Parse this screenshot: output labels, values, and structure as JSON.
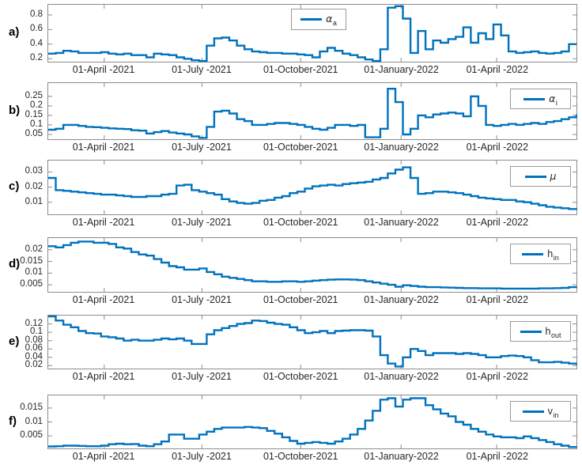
{
  "figure": {
    "background": "#ffffff",
    "line_color": "#0072BD",
    "axis_color": "#8c8c8c",
    "text_color": "#262626",
    "x_tick_labels": [
      "01-April -2021",
      "01-July -2021",
      "01-October-2021",
      "01-January-2022",
      "01-April -2022"
    ],
    "x_tick_positions": [
      0.106,
      0.291,
      0.478,
      0.668,
      0.849
    ]
  },
  "chart_data": [
    {
      "panel": "a)",
      "type": "line",
      "legend": {
        "main": "α",
        "sub": "a",
        "italic": true,
        "position": "north",
        "label": "alpha_a"
      },
      "ylim": [
        0.16,
        0.94
      ],
      "yticks": [
        0.2,
        0.4,
        0.6,
        0.8
      ],
      "x_range": "weekly samples, 08-Feb-2021 to 14-Jun-2022",
      "values": [
        0.27,
        0.28,
        0.31,
        0.3,
        0.28,
        0.28,
        0.28,
        0.29,
        0.27,
        0.26,
        0.27,
        0.25,
        0.25,
        0.22,
        0.27,
        0.26,
        0.25,
        0.22,
        0.2,
        0.18,
        0.17,
        0.38,
        0.48,
        0.49,
        0.45,
        0.38,
        0.33,
        0.3,
        0.29,
        0.28,
        0.28,
        0.27,
        0.27,
        0.26,
        0.25,
        0.22,
        0.3,
        0.35,
        0.31,
        0.27,
        0.25,
        0.22,
        0.19,
        0.17,
        0.33,
        0.9,
        0.92,
        0.75,
        0.28,
        0.58,
        0.33,
        0.45,
        0.42,
        0.47,
        0.5,
        0.63,
        0.42,
        0.55,
        0.47,
        0.67,
        0.52,
        0.3,
        0.28,
        0.29,
        0.3,
        0.28,
        0.27,
        0.28,
        0.3,
        0.4,
        0.4
      ]
    },
    {
      "panel": "b)",
      "type": "line",
      "legend": {
        "main": "α",
        "sub": "i",
        "italic": true,
        "position": "northeast",
        "label": "alpha_i"
      },
      "ylim": [
        0.025,
        0.32
      ],
      "yticks": [
        0.05,
        0.1,
        0.15,
        0.2,
        0.25
      ],
      "x_range": "weekly samples, 08-Feb-2021 to 14-Jun-2022",
      "values": [
        0.075,
        0.08,
        0.1,
        0.1,
        0.095,
        0.09,
        0.088,
        0.085,
        0.082,
        0.08,
        0.078,
        0.072,
        0.07,
        0.055,
        0.062,
        0.068,
        0.06,
        0.055,
        0.05,
        0.04,
        0.032,
        0.09,
        0.17,
        0.175,
        0.16,
        0.13,
        0.12,
        0.1,
        0.1,
        0.105,
        0.11,
        0.11,
        0.105,
        0.1,
        0.09,
        0.08,
        0.075,
        0.085,
        0.1,
        0.1,
        0.095,
        0.1,
        0.035,
        0.035,
        0.08,
        0.29,
        0.22,
        0.05,
        0.08,
        0.15,
        0.14,
        0.155,
        0.16,
        0.165,
        0.16,
        0.145,
        0.25,
        0.2,
        0.1,
        0.095,
        0.1,
        0.105,
        0.1,
        0.105,
        0.11,
        0.105,
        0.115,
        0.12,
        0.13,
        0.14,
        0.155
      ]
    },
    {
      "panel": "c)",
      "type": "line",
      "legend": {
        "main": "μ",
        "sub": "",
        "italic": true,
        "position": "northeast",
        "label": "mu"
      },
      "ylim": [
        0.002,
        0.0375
      ],
      "yticks": [
        0.01,
        0.02,
        0.03
      ],
      "x_range": "weekly samples, 08-Feb-2021 to 14-Jun-2022",
      "values": [
        0.026,
        0.018,
        0.0175,
        0.017,
        0.0165,
        0.016,
        0.0155,
        0.015,
        0.015,
        0.0145,
        0.014,
        0.0135,
        0.0135,
        0.014,
        0.014,
        0.015,
        0.0155,
        0.021,
        0.0215,
        0.018,
        0.017,
        0.016,
        0.015,
        0.012,
        0.0105,
        0.0095,
        0.009,
        0.0095,
        0.011,
        0.0115,
        0.013,
        0.014,
        0.016,
        0.017,
        0.019,
        0.0205,
        0.021,
        0.0215,
        0.021,
        0.022,
        0.0225,
        0.023,
        0.0235,
        0.025,
        0.026,
        0.029,
        0.0315,
        0.033,
        0.026,
        0.0155,
        0.016,
        0.017,
        0.017,
        0.0165,
        0.016,
        0.015,
        0.014,
        0.013,
        0.0125,
        0.012,
        0.0115,
        0.0115,
        0.0105,
        0.01,
        0.009,
        0.008,
        0.007,
        0.0065,
        0.006,
        0.0055,
        0.005
      ]
    },
    {
      "panel": "d)",
      "type": "line",
      "legend": {
        "main": "h",
        "sub": "in",
        "italic": false,
        "position": "northeast",
        "label": "h_in"
      },
      "ylim": [
        0.002,
        0.025
      ],
      "yticks": [
        0.005,
        0.01,
        0.015,
        0.02
      ],
      "x_range": "weekly samples, 08-Feb-2021 to 14-Jun-2022",
      "values": [
        0.0215,
        0.021,
        0.022,
        0.023,
        0.0235,
        0.0235,
        0.023,
        0.023,
        0.0225,
        0.021,
        0.0205,
        0.019,
        0.018,
        0.0175,
        0.016,
        0.0145,
        0.013,
        0.0125,
        0.0115,
        0.0115,
        0.012,
        0.0105,
        0.0095,
        0.0085,
        0.008,
        0.0075,
        0.007,
        0.0065,
        0.0065,
        0.0063,
        0.0063,
        0.0065,
        0.0065,
        0.0063,
        0.0065,
        0.0068,
        0.007,
        0.0072,
        0.0073,
        0.0073,
        0.0072,
        0.007,
        0.0065,
        0.006,
        0.0055,
        0.005,
        0.0042,
        0.0048,
        0.0045,
        0.0042,
        0.004,
        0.004,
        0.0039,
        0.0038,
        0.0037,
        0.0036,
        0.0036,
        0.0035,
        0.0035,
        0.0035,
        0.0034,
        0.0034,
        0.0034,
        0.0034,
        0.0034,
        0.0035,
        0.0035,
        0.0036,
        0.0037,
        0.004,
        0.0042
      ]
    },
    {
      "panel": "e)",
      "type": "line",
      "legend": {
        "main": "h",
        "sub": "out",
        "italic": false,
        "position": "northeast",
        "label": "h_out"
      },
      "ylim": [
        0.013,
        0.14
      ],
      "yticks": [
        0.02,
        0.04,
        0.06,
        0.08,
        0.1,
        0.12
      ],
      "x_range": "weekly samples, 08-Feb-2021 to 14-Jun-2022",
      "values": [
        0.138,
        0.128,
        0.118,
        0.112,
        0.103,
        0.098,
        0.097,
        0.09,
        0.088,
        0.085,
        0.08,
        0.082,
        0.08,
        0.08,
        0.082,
        0.085,
        0.083,
        0.085,
        0.08,
        0.072,
        0.072,
        0.095,
        0.105,
        0.11,
        0.115,
        0.12,
        0.122,
        0.128,
        0.127,
        0.123,
        0.12,
        0.118,
        0.112,
        0.105,
        0.098,
        0.1,
        0.103,
        0.098,
        0.103,
        0.104,
        0.105,
        0.105,
        0.104,
        0.09,
        0.045,
        0.025,
        0.018,
        0.04,
        0.06,
        0.055,
        0.045,
        0.05,
        0.05,
        0.05,
        0.048,
        0.05,
        0.048,
        0.045,
        0.04,
        0.04,
        0.043,
        0.044,
        0.043,
        0.04,
        0.033,
        0.028,
        0.028,
        0.029,
        0.027,
        0.025,
        0.022
      ]
    },
    {
      "panel": "f)",
      "type": "line",
      "legend": {
        "main": "v",
        "sub": "in",
        "italic": false,
        "position": "northeast",
        "label": "v_in"
      },
      "ylim": [
        0.0005,
        0.0195
      ],
      "yticks": [
        0.005,
        0.01,
        0.015
      ],
      "x_range": "weekly samples, 08-Feb-2021 to 14-Jun-2022",
      "values": [
        0.0012,
        0.0013,
        0.0015,
        0.0015,
        0.0014,
        0.0013,
        0.0013,
        0.0015,
        0.002,
        0.0022,
        0.002,
        0.0021,
        0.0015,
        0.0013,
        0.002,
        0.003,
        0.0055,
        0.0055,
        0.004,
        0.004,
        0.0055,
        0.0065,
        0.0075,
        0.008,
        0.008,
        0.008,
        0.0082,
        0.008,
        0.0078,
        0.0068,
        0.0058,
        0.0045,
        0.0032,
        0.0022,
        0.0025,
        0.0028,
        0.0025,
        0.0022,
        0.003,
        0.004,
        0.0055,
        0.0075,
        0.0105,
        0.014,
        0.018,
        0.0185,
        0.0155,
        0.018,
        0.0185,
        0.0185,
        0.016,
        0.0145,
        0.013,
        0.012,
        0.01,
        0.009,
        0.0075,
        0.0065,
        0.0055,
        0.0048,
        0.0045,
        0.0045,
        0.0042,
        0.0048,
        0.0042,
        0.0035,
        0.0028,
        0.002,
        0.0015,
        0.001,
        0.0007
      ]
    }
  ]
}
